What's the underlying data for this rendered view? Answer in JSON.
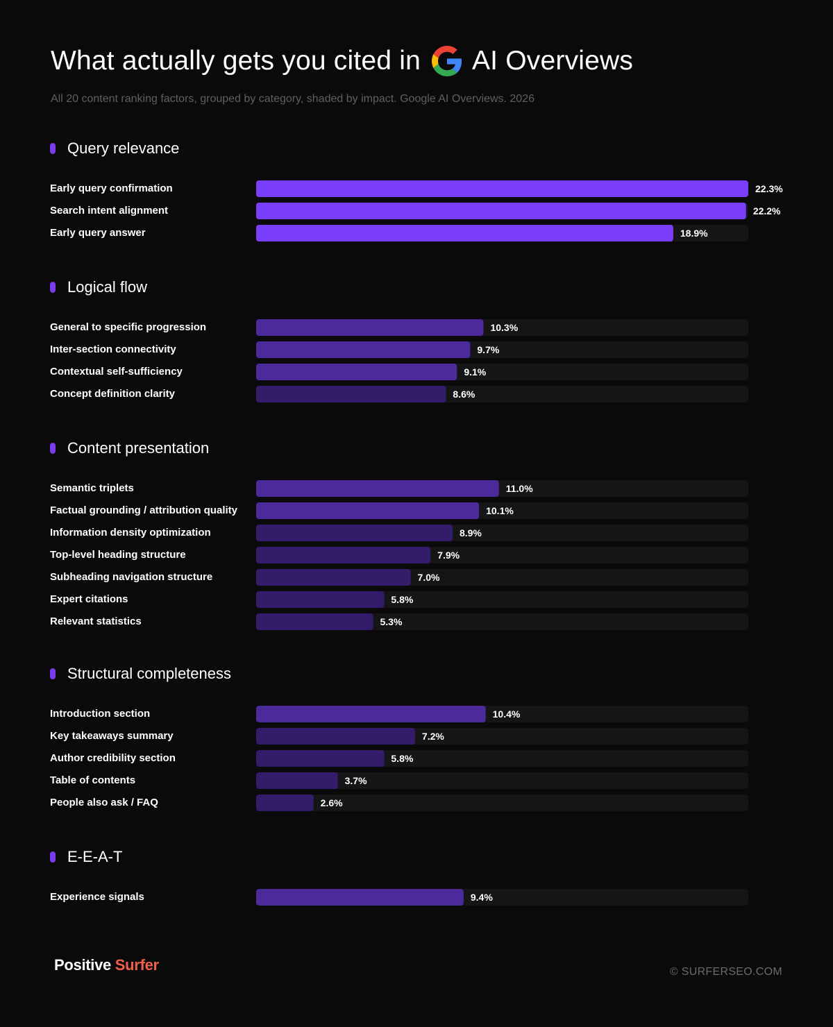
{
  "header": {
    "title_before": "What actually gets you cited in",
    "title_after": "AI Overviews",
    "logo_icon": "google-g-icon",
    "subtitle": "All 20 content ranking factors, grouped by category, shaded by impact. Google AI Overviews. 2026"
  },
  "colors": {
    "background": "#0a0a0b",
    "track": "#151518",
    "accent": "#7c3aed",
    "bar_high": "#7a3dfb",
    "bar_mid": "#4c2a9c",
    "bar_low": "#331c6a",
    "brand_orange": "#f0614a"
  },
  "chart_data": {
    "type": "bar",
    "orientation": "horizontal",
    "title": "What actually gets you cited in AI Overviews",
    "subtitle": "All 20 content ranking factors, grouped by category, shaded by impact. Google AI Overviews. 2026",
    "unit": "%",
    "xlim": [
      0,
      22.3
    ],
    "grid": false,
    "groups": [
      {
        "name": "Query relevance",
        "categories": [
          "Early query confirmation",
          "Search intent alignment",
          "Early query answer"
        ],
        "values": [
          22.3,
          22.2,
          18.9
        ],
        "labels": [
          "22.3%",
          "22.2%",
          "18.9%"
        ]
      },
      {
        "name": "Logical flow",
        "categories": [
          "General to specific progression",
          "Inter-section connectivity",
          "Contextual self-sufficiency",
          "Concept definition clarity"
        ],
        "values": [
          10.3,
          9.7,
          9.1,
          8.6
        ],
        "labels": [
          "10.3%",
          "9.7%",
          "9.1%",
          "8.6%"
        ]
      },
      {
        "name": "Content presentation",
        "categories": [
          "Semantic triplets",
          "Factual grounding / attribution quality",
          "Information density optimization",
          "Top-level heading structure",
          "Subheading navigation structure",
          "Expert citations",
          "Relevant statistics"
        ],
        "values": [
          11.0,
          10.1,
          8.9,
          7.9,
          7.0,
          5.8,
          5.3
        ],
        "labels": [
          "11.0%",
          "10.1%",
          "8.9%",
          "7.9%",
          "7.0%",
          "5.8%",
          "5.3%"
        ]
      },
      {
        "name": "Structural completeness",
        "categories": [
          "Introduction section",
          "Key takeaways summary",
          "Author credibility section",
          "Table of contents",
          "People also ask / FAQ"
        ],
        "values": [
          10.4,
          7.2,
          5.8,
          3.7,
          2.6
        ],
        "labels": [
          "10.4%",
          "7.2%",
          "5.8%",
          "3.7%",
          "2.6%"
        ]
      },
      {
        "name": "E-E-A-T",
        "categories": [
          "Experience signals"
        ],
        "values": [
          9.4
        ],
        "labels": [
          "9.4%"
        ]
      }
    ]
  },
  "footer": {
    "brand_part1": "Positive",
    "brand_part2": "Surfer",
    "credit": "© SURFERSEO.COM"
  }
}
